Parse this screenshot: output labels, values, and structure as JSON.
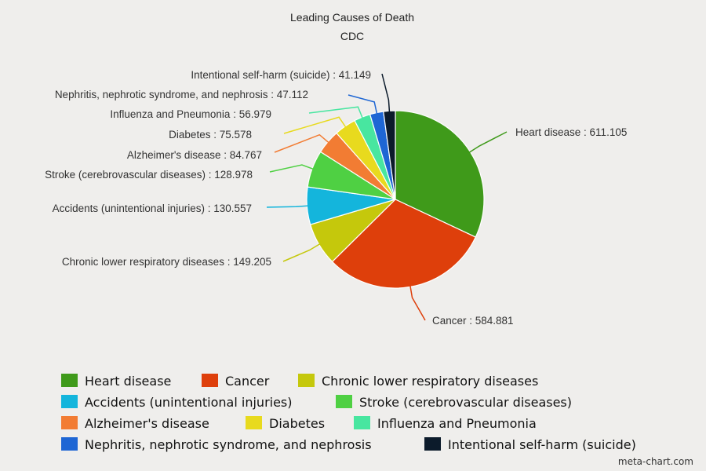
{
  "chart_data": {
    "type": "pie",
    "title": "Leading Causes of Death",
    "subtitle": "CDC",
    "label_separator": " : ",
    "slices": [
      {
        "label": "Heart disease",
        "value": 611.105,
        "color": "#3f9a1a"
      },
      {
        "label": "Cancer",
        "value": 584.881,
        "color": "#de3f0b"
      },
      {
        "label": "Chronic lower respiratory diseases",
        "value": 149.205,
        "color": "#c5c80c"
      },
      {
        "label": "Accidents (unintentional injuries)",
        "value": 130.557,
        "color": "#14b5dc"
      },
      {
        "label": "Stroke (cerebrovascular diseases)",
        "value": 128.978,
        "color": "#4fd043"
      },
      {
        "label": "Alzheimer's disease",
        "value": 84.767,
        "color": "#f27c33"
      },
      {
        "label": "Diabetes",
        "value": 75.578,
        "color": "#e8da1e"
      },
      {
        "label": "Influenza and Pneumonia",
        "value": 56.979,
        "color": "#48e6a0"
      },
      {
        "label": "Nephritis, nephrotic syndrome, and nephrosis",
        "value": 47.112,
        "color": "#1e66d4"
      },
      {
        "label": "Intentional self-harm (suicide)",
        "value": 41.149,
        "color": "#0c1b2b"
      }
    ],
    "legend_position": "bottom"
  },
  "credit": "meta-chart.com"
}
